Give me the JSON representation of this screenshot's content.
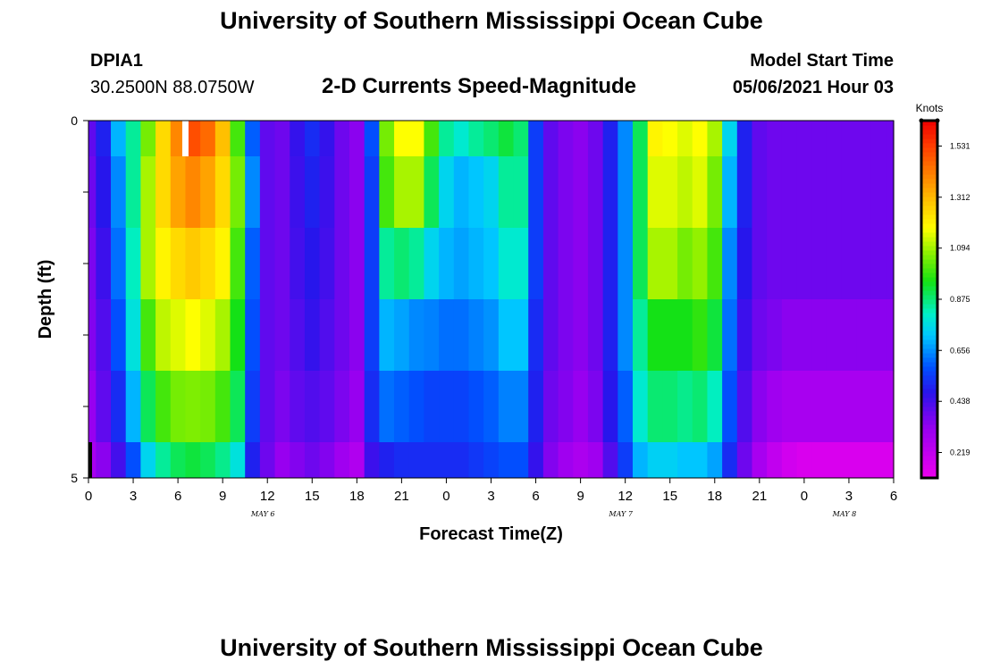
{
  "header": {
    "title": "University of Southern Mississippi Ocean Cube",
    "station_id": "DPIA1",
    "location": "30.2500N  88.0750W",
    "subtitle": "2-D Currents Speed-Magnitude",
    "model_start_label": "Model Start Time",
    "model_start_value": "05/06/2021 Hour 03"
  },
  "footer": {
    "title": "University of Southern Mississippi Ocean Cube"
  },
  "chart_data": {
    "type": "heatmap",
    "title": "2-D Currents Speed-Magnitude",
    "xlabel": "Forecast Time(Z)",
    "ylabel": "Depth (ft)",
    "x_hours_range": [
      0,
      54
    ],
    "ylim": [
      0,
      5
    ],
    "y_tick_labels": [
      "0",
      "5"
    ],
    "x_tick_labels": [
      "0",
      "3",
      "6",
      "9",
      "12",
      "15",
      "18",
      "21",
      "0",
      "3",
      "6",
      "9",
      "12",
      "15",
      "18",
      "21",
      "0",
      "3",
      "6"
    ],
    "date_labels": [
      {
        "label": "MAY 6",
        "hour": 11.7
      },
      {
        "label": "MAY 7",
        "hour": 35.7
      },
      {
        "label": "MAY 8",
        "hour": 50.7
      }
    ],
    "colorbar": {
      "title": "Knots",
      "min": 0.11,
      "max": 1.64,
      "ticks": [
        0.219,
        0.438,
        0.656,
        0.875,
        1.094,
        1.312,
        1.531
      ]
    },
    "layer_boundaries_ft": [
      0,
      0.5,
      1.5,
      2.5,
      3.5,
      4.5,
      5
    ],
    "hours": [
      0,
      1,
      2,
      3,
      4,
      5,
      6,
      7,
      8,
      9,
      10,
      11,
      12,
      13,
      14,
      15,
      16,
      17,
      18,
      19,
      20,
      21,
      22,
      23,
      24,
      25,
      26,
      27,
      28,
      29,
      30,
      31,
      32,
      33,
      34,
      35,
      36,
      37,
      38,
      39,
      40,
      41,
      42,
      43,
      44,
      45,
      46,
      47,
      48,
      49,
      50,
      51,
      52,
      53,
      54
    ],
    "speed_layers": [
      [
        0.4,
        0.5,
        0.7,
        0.85,
        1.05,
        1.25,
        1.4,
        1.5,
        1.45,
        1.3,
        1.0,
        0.6,
        0.4,
        0.38,
        0.46,
        0.52,
        0.46,
        0.38,
        0.34,
        0.58,
        1.05,
        1.18,
        1.18,
        1.0,
        0.85,
        0.8,
        0.85,
        0.88,
        0.92,
        0.88,
        0.55,
        0.4,
        0.36,
        0.34,
        0.38,
        0.5,
        0.65,
        0.9,
        1.2,
        1.18,
        1.15,
        1.18,
        1.1,
        0.75,
        0.5,
        0.4,
        0.38,
        0.38,
        0.38,
        0.38,
        0.38,
        0.38,
        0.38,
        0.38,
        0.38
      ],
      [
        0.38,
        0.48,
        0.65,
        0.85,
        1.1,
        1.25,
        1.35,
        1.4,
        1.35,
        1.25,
        1.05,
        0.65,
        0.4,
        0.38,
        0.45,
        0.5,
        0.45,
        0.38,
        0.34,
        0.55,
        1.0,
        1.1,
        1.1,
        0.9,
        0.75,
        0.7,
        0.72,
        0.75,
        0.85,
        0.85,
        0.55,
        0.4,
        0.36,
        0.34,
        0.38,
        0.5,
        0.65,
        0.9,
        1.15,
        1.15,
        1.12,
        1.15,
        1.05,
        0.7,
        0.5,
        0.4,
        0.38,
        0.38,
        0.38,
        0.38,
        0.38,
        0.38,
        0.38,
        0.38,
        0.38
      ],
      [
        0.36,
        0.45,
        0.62,
        0.82,
        1.1,
        1.2,
        1.25,
        1.28,
        1.25,
        1.2,
        1.0,
        0.6,
        0.4,
        0.38,
        0.44,
        0.48,
        0.44,
        0.38,
        0.34,
        0.55,
        0.85,
        0.88,
        0.85,
        0.75,
        0.7,
        0.68,
        0.7,
        0.72,
        0.8,
        0.8,
        0.55,
        0.4,
        0.36,
        0.34,
        0.38,
        0.5,
        0.65,
        0.9,
        1.1,
        1.1,
        1.05,
        1.08,
        1.0,
        0.65,
        0.48,
        0.4,
        0.38,
        0.38,
        0.38,
        0.38,
        0.38,
        0.38,
        0.38,
        0.38,
        0.38
      ],
      [
        0.35,
        0.42,
        0.58,
        0.78,
        1.0,
        1.12,
        1.15,
        1.18,
        1.15,
        1.1,
        0.95,
        0.58,
        0.4,
        0.38,
        0.42,
        0.46,
        0.42,
        0.38,
        0.34,
        0.55,
        0.7,
        0.68,
        0.65,
        0.64,
        0.62,
        0.62,
        0.64,
        0.66,
        0.72,
        0.72,
        0.52,
        0.4,
        0.36,
        0.34,
        0.38,
        0.5,
        0.65,
        0.85,
        0.95,
        0.95,
        0.95,
        0.98,
        0.92,
        0.62,
        0.45,
        0.38,
        0.36,
        0.34,
        0.34,
        0.34,
        0.34,
        0.34,
        0.34,
        0.34,
        0.34
      ],
      [
        0.32,
        0.4,
        0.52,
        0.7,
        0.9,
        1.0,
        1.05,
        1.06,
        1.05,
        1.0,
        0.9,
        0.55,
        0.4,
        0.36,
        0.4,
        0.42,
        0.4,
        0.36,
        0.32,
        0.52,
        0.62,
        0.6,
        0.58,
        0.56,
        0.56,
        0.56,
        0.58,
        0.6,
        0.64,
        0.64,
        0.5,
        0.38,
        0.35,
        0.32,
        0.36,
        0.48,
        0.6,
        0.8,
        0.88,
        0.88,
        0.86,
        0.88,
        0.82,
        0.58,
        0.42,
        0.34,
        0.3,
        0.28,
        0.28,
        0.28,
        0.28,
        0.28,
        0.28,
        0.28,
        0.28
      ],
      [
        0.28,
        0.34,
        0.44,
        0.58,
        0.75,
        0.85,
        0.9,
        0.92,
        0.9,
        0.86,
        0.78,
        0.5,
        0.38,
        0.32,
        0.35,
        0.38,
        0.35,
        0.3,
        0.26,
        0.45,
        0.5,
        0.52,
        0.52,
        0.52,
        0.52,
        0.52,
        0.54,
        0.56,
        0.58,
        0.58,
        0.46,
        0.35,
        0.3,
        0.27,
        0.3,
        0.42,
        0.55,
        0.7,
        0.74,
        0.74,
        0.72,
        0.72,
        0.68,
        0.52,
        0.38,
        0.28,
        0.22,
        0.18,
        0.16,
        0.16,
        0.16,
        0.16,
        0.16,
        0.16,
        0.16
      ]
    ],
    "no_data_marker_hour": 6.5
  }
}
